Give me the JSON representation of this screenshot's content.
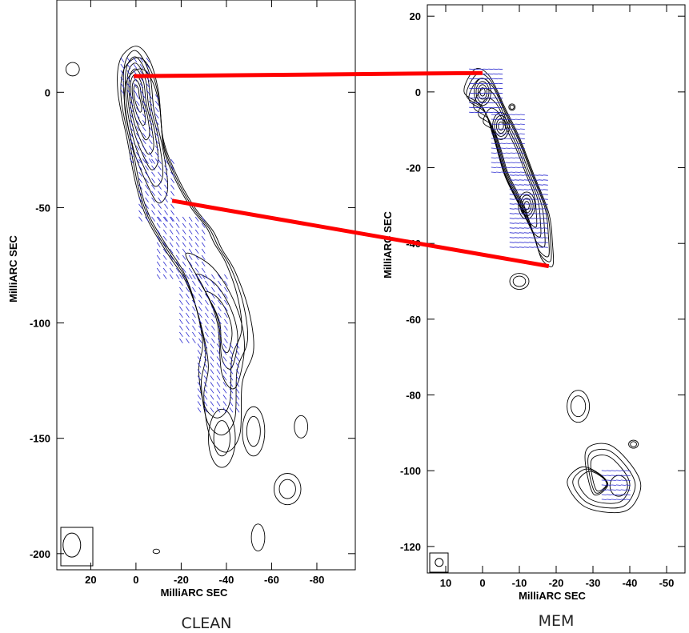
{
  "colors": {
    "contour": "#000000",
    "polarization_vectors": "#2a2ad0",
    "correspondence_lines": "#ff0000"
  },
  "chart_data": [
    {
      "type": "contour",
      "caption": "CLEAN",
      "xlabel": "MilliARC SEC",
      "ylabel": "MilliARC SEC",
      "x_range": [
        35,
        -97
      ],
      "y_range": [
        -207,
        40
      ],
      "x_ticks": [
        20,
        0,
        -20,
        -40,
        -60,
        -80
      ],
      "x_tick_labels": [
        "20",
        "0",
        "-20",
        "-40",
        "-60",
        "-80"
      ],
      "y_ticks": [
        0,
        -50,
        -100,
        -150,
        -200
      ],
      "y_tick_labels": [
        "0",
        "-50",
        "-100",
        "-150",
        "-200"
      ],
      "beam": {
        "x": 28,
        "y": -197,
        "major": 12,
        "minor": 8
      },
      "jet_ridge": [
        {
          "x": 0,
          "y": 2
        },
        {
          "x": -8,
          "y": -25
        },
        {
          "x": -14,
          "y": -45
        },
        {
          "x": -22,
          "y": -70
        },
        {
          "x": -35,
          "y": -100
        },
        {
          "x": -40,
          "y": -130
        },
        {
          "x": -38,
          "y": -150
        }
      ],
      "features": [
        {
          "name": "core",
          "x": 0,
          "y": 0
        },
        {
          "name": "knot",
          "x": -42,
          "y": -105
        },
        {
          "name": "blob",
          "x": -52,
          "y": -147
        },
        {
          "name": "blob",
          "x": -73,
          "y": -145
        },
        {
          "name": "blob",
          "x": -67,
          "y": -172
        },
        {
          "name": "blob",
          "x": -54,
          "y": -193
        },
        {
          "name": "blob",
          "x": 28,
          "y": 10
        }
      ]
    },
    {
      "type": "contour",
      "caption": "MEM",
      "xlabel": "MilliARC SEC",
      "ylabel": "MilliARC SEC",
      "x_range": [
        15,
        -55
      ],
      "y_range": [
        -127,
        23
      ],
      "x_ticks": [
        10,
        0,
        -10,
        -20,
        -30,
        -40,
        -50
      ],
      "x_tick_labels": [
        "10",
        "0",
        "-10",
        "-20",
        "-30",
        "-40",
        "-50"
      ],
      "y_ticks": [
        20,
        0,
        -20,
        -40,
        -60,
        -80,
        -100,
        -120
      ],
      "y_tick_labels": [
        "20",
        "0",
        "-20",
        "-40",
        "-60",
        "-80",
        "-100",
        "-120"
      ],
      "beam": {
        "x": 12,
        "y": -124,
        "major": 3,
        "minor": 3
      },
      "jet_ridge": [
        {
          "x": 0,
          "y": 0
        },
        {
          "x": -5,
          "y": -10
        },
        {
          "x": -9,
          "y": -20
        },
        {
          "x": -12,
          "y": -30
        },
        {
          "x": -16,
          "y": -42
        }
      ],
      "features": [
        {
          "name": "core",
          "x": 0,
          "y": 0
        },
        {
          "name": "blob",
          "x": -27,
          "y": -83
        },
        {
          "name": "blob",
          "x": -30,
          "y": -100
        },
        {
          "name": "blob",
          "x": -37,
          "y": -104
        },
        {
          "name": "blob",
          "x": -10,
          "y": -50
        }
      ]
    }
  ],
  "correspondence_lines": [
    {
      "from": {
        "panel": 0,
        "x": 1,
        "y": 7
      },
      "to": {
        "panel": 1,
        "x": 0,
        "y": 5
      }
    },
    {
      "from": {
        "panel": 0,
        "x": -16,
        "y": -47
      },
      "to": {
        "panel": 1,
        "x": -18,
        "y": -46
      }
    }
  ]
}
